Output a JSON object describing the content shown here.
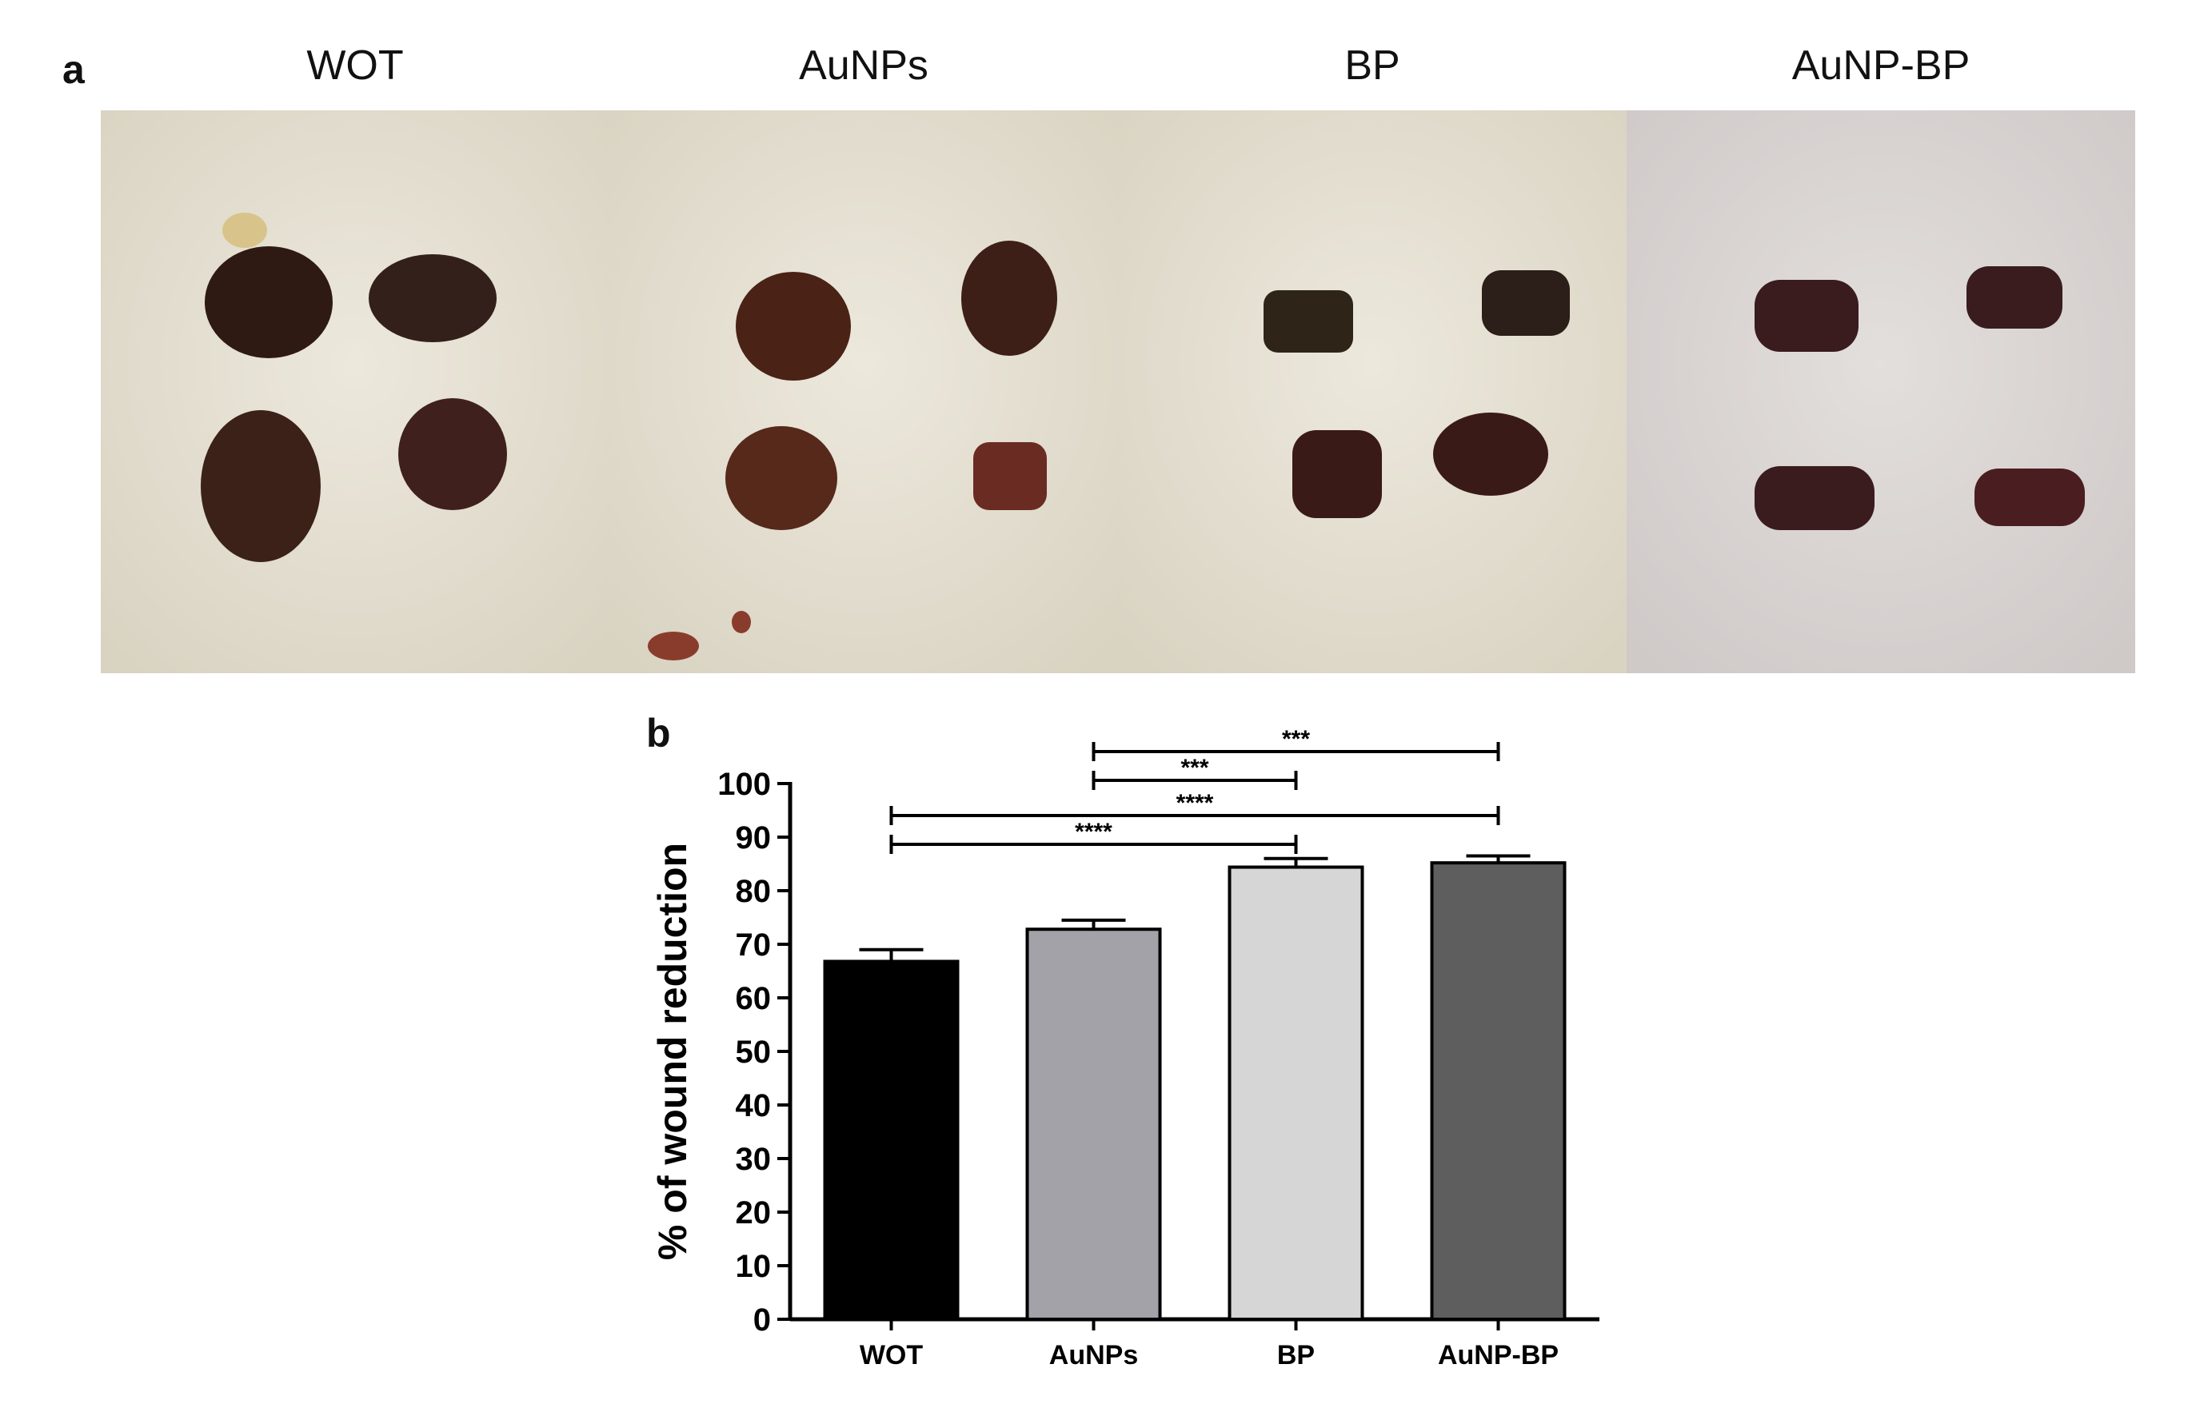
{
  "figure": {
    "panel_a_label": "a",
    "panel_b_label": "b",
    "photo_titles": [
      "WOT",
      "AuNPs",
      "BP",
      "AuNP-BP"
    ]
  },
  "colors": {
    "bar_WOT": "#000000",
    "bar_AuNPs": "#a2a2a8",
    "bar_BP": "#d6d6d6",
    "bar_AuNP-BP": "#5e5e5e",
    "skin_background": "#e7e2d4",
    "wound": "#3a1a14"
  },
  "chart_data": {
    "type": "bar",
    "categories": [
      "WOT",
      "AuNPs",
      "BP",
      "AuNP-BP"
    ],
    "values": [
      66.8,
      72.8,
      84.4,
      85.2
    ],
    "error": [
      2.2,
      1.7,
      1.6,
      1.3
    ],
    "title": "",
    "xlabel": "",
    "ylabel": "% of wound reduction",
    "ylim": [
      0,
      100
    ],
    "yticks": [
      "0",
      "10",
      "20",
      "30",
      "40",
      "50",
      "60",
      "70",
      "80",
      "90",
      "100"
    ],
    "grid": false,
    "significance": [
      {
        "from": "AuNPs",
        "to": "AuNP-BP",
        "label": "***"
      },
      {
        "from": "AuNPs",
        "to": "BP",
        "label": "***"
      },
      {
        "from": "WOT",
        "to": "AuNP-BP",
        "label": "****"
      },
      {
        "from": "WOT",
        "to": "BP",
        "label": "****"
      }
    ]
  }
}
